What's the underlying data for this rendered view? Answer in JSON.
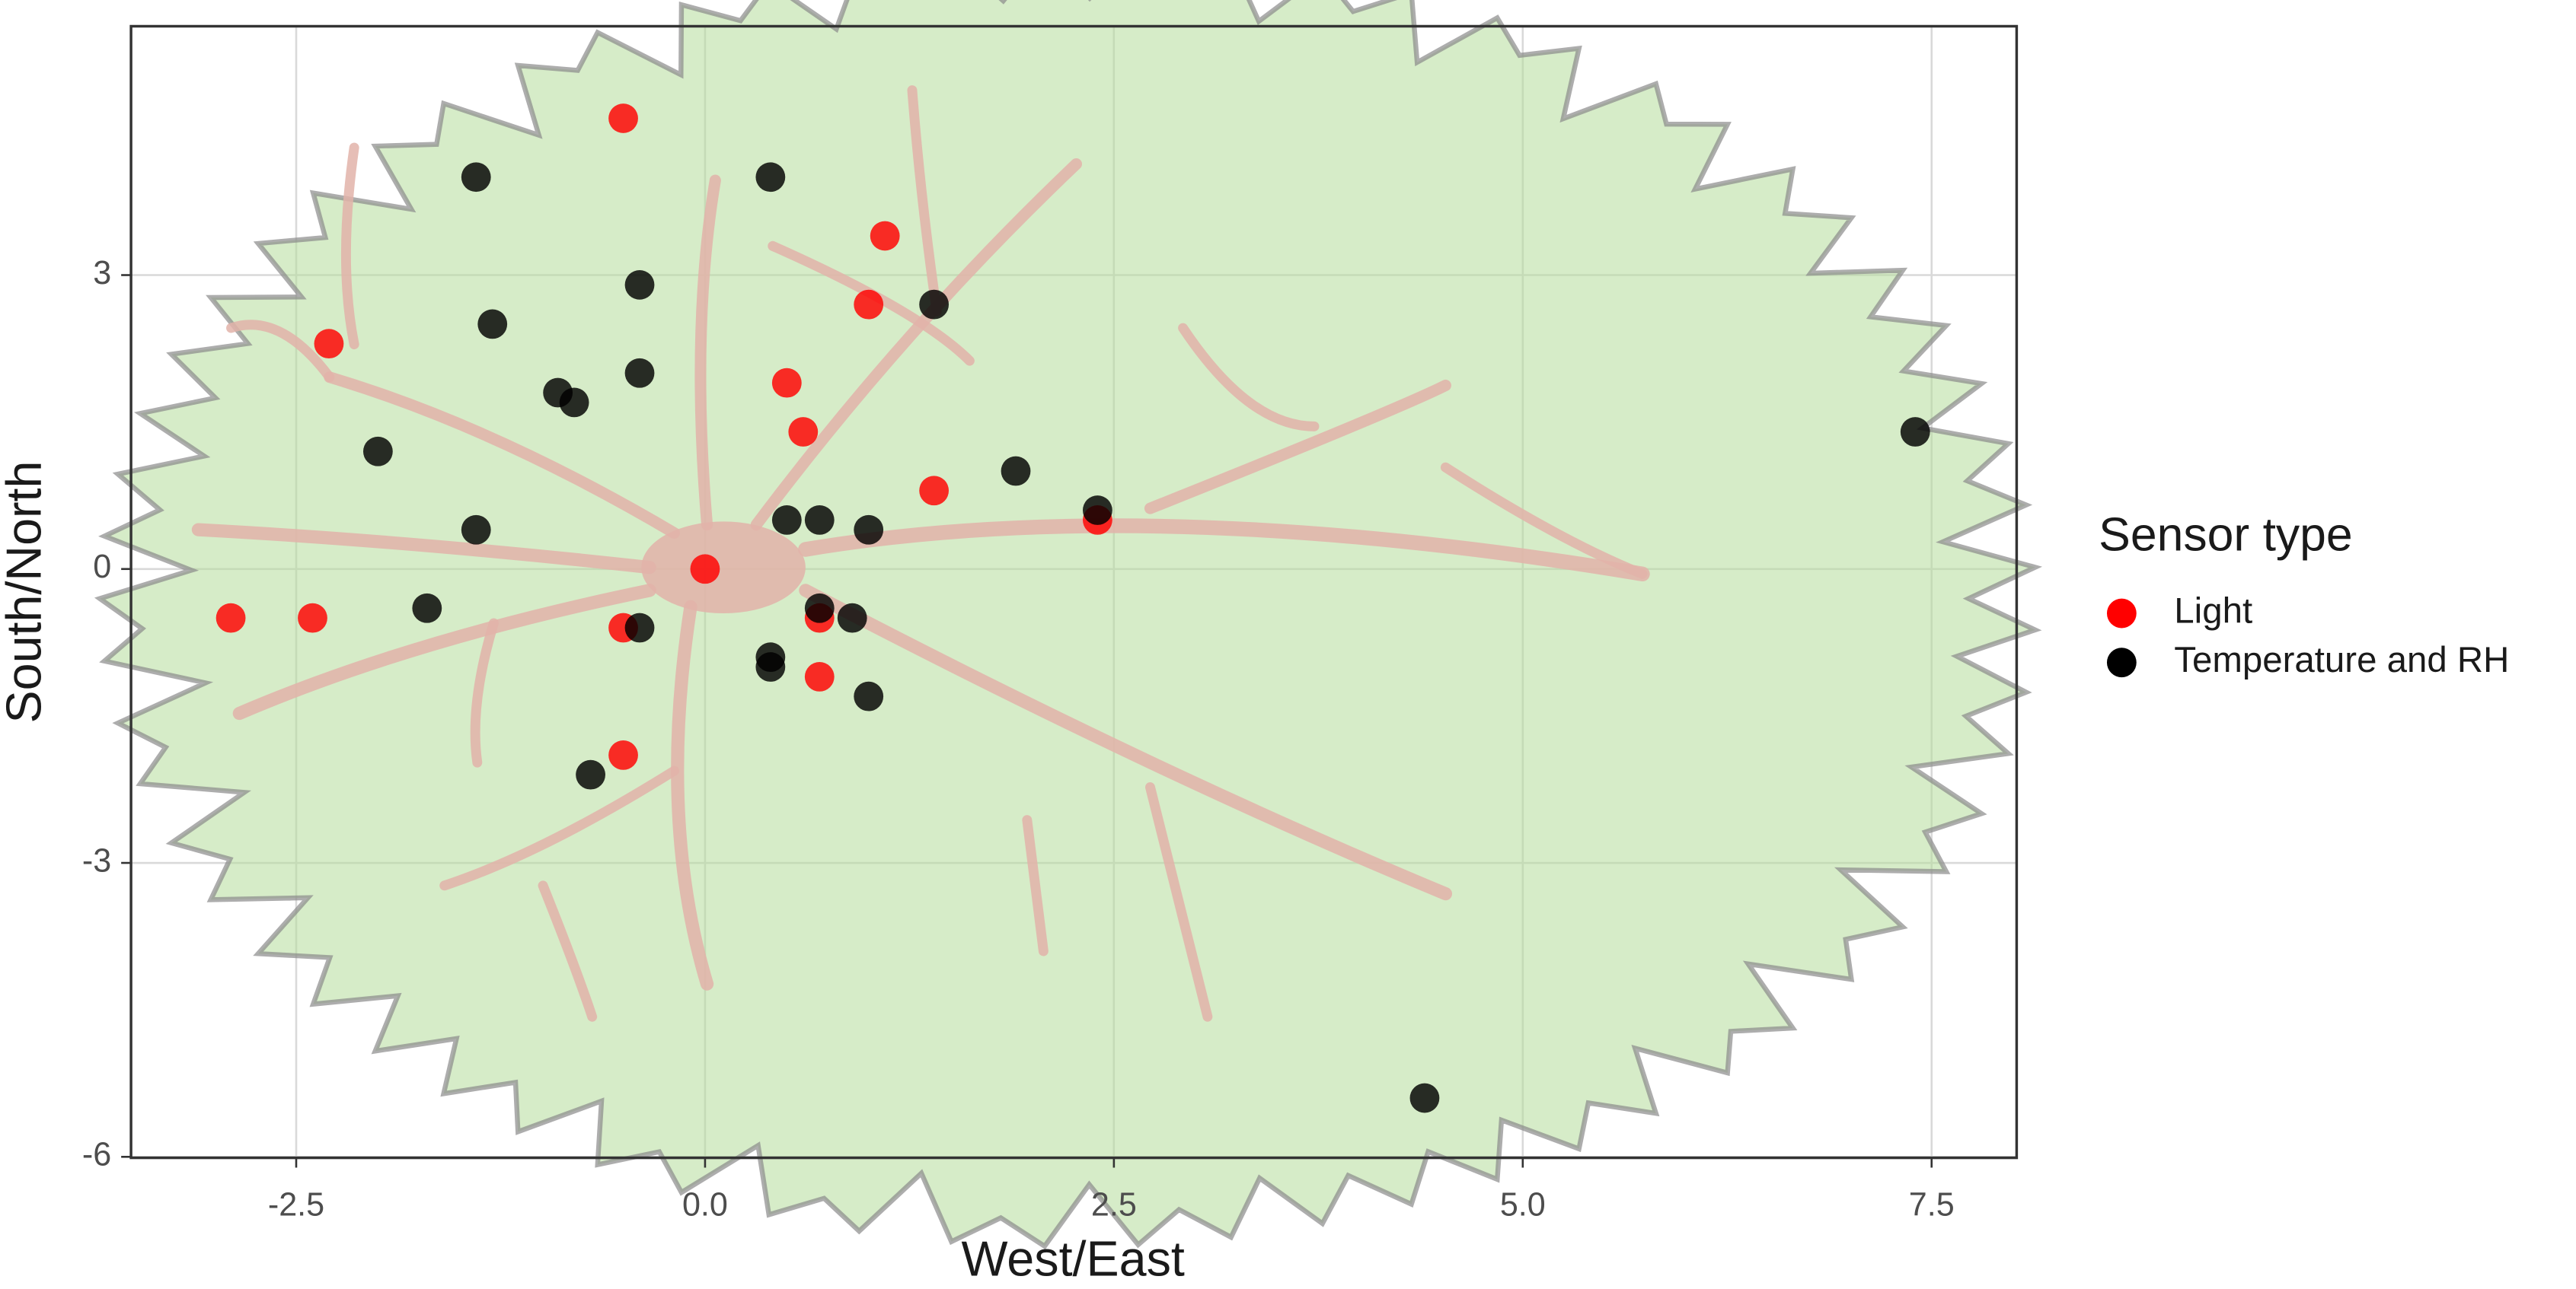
{
  "chart_data": {
    "type": "scatter",
    "x_label": "West/East",
    "y_label": "South/North",
    "legend_title": "Sensor type",
    "legend_position": "right",
    "grid": true,
    "xlim": [
      -3.51,
      8.02
    ],
    "ylim": [
      -6.01,
      5.54
    ],
    "xticks": [
      -2.5,
      {
        "value": 0,
        "label": "0.0"
      },
      2.5,
      {
        "value": 5,
        "label": "5.0"
      },
      7.5
    ],
    "yticks": [
      -6,
      -3,
      0,
      3
    ],
    "series": [
      {
        "name": "Light",
        "color": "#ff0000",
        "x": [
          -0.5,
          1.1,
          1.0,
          -2.3,
          0.5,
          0.6,
          1.4,
          2.4,
          0,
          -2.9,
          -2.4,
          -0.5,
          0.7,
          0.7,
          -0.5
        ],
        "values": [
          4.6,
          3.4,
          2.7,
          2.3,
          1.9,
          1.4,
          0.8,
          0.5,
          0,
          -0.5,
          -0.5,
          -0.6,
          -0.5,
          -1.1,
          -1.9
        ]
      },
      {
        "name": "Temperature and RH",
        "color": "#000000",
        "x": [
          -1.4,
          0.4,
          -0.4,
          1.4,
          -1.3,
          -0.4,
          -0.9,
          -0.8,
          -2.0,
          7.4,
          1.9,
          2.4,
          0.5,
          0.7,
          1.0,
          -1.4,
          -1.7,
          -0.4,
          0.7,
          0.9,
          0.4,
          0.4,
          1.0,
          -0.7,
          4.4
        ],
        "values": [
          4.0,
          4.0,
          2.9,
          2.7,
          2.5,
          2.0,
          1.8,
          1.7,
          1.2,
          1.4,
          1.0,
          0.6,
          0.5,
          0.5,
          0.4,
          0.4,
          -0.4,
          -0.6,
          -0.4,
          -0.5,
          -0.9,
          -1.0,
          -1.3,
          -2.1,
          -5.4
        ]
      }
    ]
  }
}
